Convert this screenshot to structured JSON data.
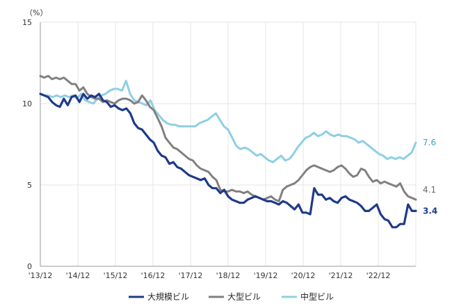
{
  "chart_data": {
    "type": "line",
    "unit_label": "（%）",
    "ylim": [
      0,
      15
    ],
    "yticks": [
      "0",
      "5",
      "10",
      "15"
    ],
    "x_tick_labels": [
      "'13/12",
      "'14/12",
      "'15/12",
      "'16/12",
      "'17/12",
      "'18/12",
      "'19/12",
      "'20/12",
      "'21/12",
      "'22/12"
    ],
    "grid": true,
    "legend_position": "bottom",
    "series": [
      {
        "name": "大規模ビル",
        "color": "#1f3a8a",
        "end_label": "3.4",
        "values": [
          10.6,
          10.5,
          10.4,
          10.1,
          9.9,
          9.8,
          10.3,
          9.9,
          10.4,
          10.5,
          10.1,
          10.6,
          10.3,
          10.5,
          10.4,
          10.6,
          10.2,
          10.1,
          9.8,
          9.9,
          9.7,
          9.6,
          9.7,
          9.4,
          8.8,
          8.5,
          8.4,
          8.1,
          7.8,
          7.6,
          7.1,
          6.8,
          6.7,
          6.3,
          6.4,
          6.1,
          6.0,
          5.8,
          5.6,
          5.5,
          5.4,
          5.3,
          5.4,
          5.0,
          4.8,
          4.8,
          4.5,
          4.7,
          4.3,
          4.1,
          4.0,
          3.9,
          3.9,
          4.1,
          4.2,
          4.3,
          4.2,
          4.1,
          4.0,
          4.0,
          3.9,
          3.8,
          4.0,
          3.9,
          3.7,
          3.5,
          3.8,
          3.3,
          3.3,
          3.2,
          4.8,
          4.4,
          4.4,
          4.1,
          4.2,
          4.0,
          3.9,
          4.2,
          4.3,
          4.1,
          4.0,
          3.9,
          3.7,
          3.4,
          3.4,
          3.6,
          3.8,
          3.2,
          2.9,
          2.8,
          2.4,
          2.4,
          2.6,
          2.6,
          3.8,
          3.4,
          3.4
        ]
      },
      {
        "name": "大型ビル",
        "color": "#808080",
        "end_label": "4.1",
        "values": [
          11.7,
          11.6,
          11.7,
          11.5,
          11.6,
          11.5,
          11.6,
          11.4,
          11.2,
          11.2,
          10.8,
          11.0,
          10.6,
          10.4,
          10.3,
          10.3,
          10.1,
          10.2,
          10.1,
          10.0,
          10.2,
          10.3,
          10.3,
          10.2,
          10.0,
          10.1,
          10.5,
          10.2,
          9.8,
          9.6,
          9.1,
          8.6,
          7.9,
          7.6,
          7.3,
          7.2,
          7.0,
          6.8,
          6.6,
          6.5,
          6.2,
          6.0,
          5.9,
          5.8,
          5.5,
          5.3,
          4.7,
          4.6,
          4.6,
          4.7,
          4.6,
          4.6,
          4.5,
          4.6,
          4.4,
          4.3,
          4.2,
          4.1,
          4.2,
          4.3,
          4.1,
          4.0,
          4.7,
          4.9,
          5.0,
          5.1,
          5.3,
          5.6,
          5.9,
          6.1,
          6.2,
          6.1,
          6.0,
          5.9,
          5.8,
          5.9,
          6.1,
          6.2,
          6.0,
          5.7,
          5.5,
          5.6,
          6.0,
          5.9,
          5.5,
          5.2,
          5.3,
          5.1,
          5.2,
          5.1,
          5.0,
          4.9,
          5.1,
          4.6,
          4.3,
          4.2,
          4.1
        ]
      },
      {
        "name": "中型ビル",
        "color": "#8ecfe3",
        "end_label": "7.6",
        "values": [
          10.6,
          10.5,
          10.5,
          10.4,
          10.5,
          10.4,
          10.5,
          10.4,
          10.5,
          10.3,
          10.6,
          10.2,
          10.1,
          10.0,
          10.3,
          10.5,
          10.6,
          10.8,
          10.9,
          10.9,
          10.8,
          11.4,
          10.6,
          10.2,
          10.1,
          10.0,
          9.9,
          10.2,
          9.6,
          9.3,
          9.0,
          8.8,
          8.7,
          8.7,
          8.6,
          8.6,
          8.6,
          8.6,
          8.6,
          8.8,
          8.9,
          9.0,
          9.2,
          9.4,
          9.0,
          8.6,
          8.4,
          7.9,
          7.4,
          7.2,
          7.3,
          7.2,
          7.0,
          6.8,
          6.9,
          6.7,
          6.5,
          6.4,
          6.6,
          6.8,
          6.5,
          6.6,
          6.9,
          7.3,
          7.6,
          7.9,
          8.0,
          8.2,
          8.0,
          8.1,
          8.3,
          8.1,
          8.0,
          8.1,
          8.0,
          8.0,
          7.9,
          7.8,
          7.6,
          7.7,
          7.5,
          7.3,
          7.1,
          6.9,
          6.8,
          6.6,
          6.7,
          6.6,
          6.7,
          6.6,
          6.8,
          7.0,
          7.6
        ]
      }
    ]
  }
}
